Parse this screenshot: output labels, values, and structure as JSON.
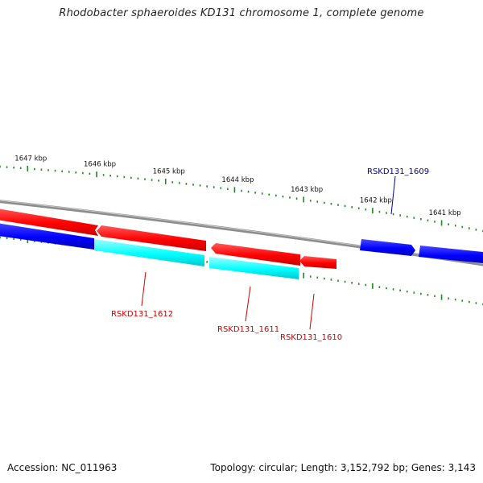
{
  "title": "Rhodobacter sphaeroides KD131 chromosome 1, complete genome",
  "footer": {
    "accession": "Accession: NC_011963",
    "summary": "Topology: circular; Length: 3,152,792 bp; Genes: 3,143"
  },
  "colors": {
    "backbone": "#8c8c8c",
    "forward_cds": "#ff0000",
    "reverse_cds": "#0000ff",
    "reverse_cds_alt": "#00ffff",
    "ticks": "#1f8a1f",
    "label_forward": "#cc0000",
    "label_reverse": "#000099"
  },
  "scale": {
    "unit": "kbp",
    "labels": [
      "1647 kbp",
      "1646 kbp",
      "1645 kbp",
      "1644 kbp",
      "1643 kbp",
      "1642 kbp",
      "1641 kbp"
    ]
  },
  "genes": [
    {
      "id": "RSKD131_1612",
      "label": "RSKD131_1612",
      "color": "label_forward"
    },
    {
      "id": "RSKD131_1611",
      "label": "RSKD131_1611",
      "color": "label_forward"
    },
    {
      "id": "RSKD131_1610",
      "label": "RSKD131_1610",
      "color": "label_forward"
    },
    {
      "id": "RSKD131_1609",
      "label": "RSKD131_1609",
      "color": "label_reverse"
    }
  ]
}
